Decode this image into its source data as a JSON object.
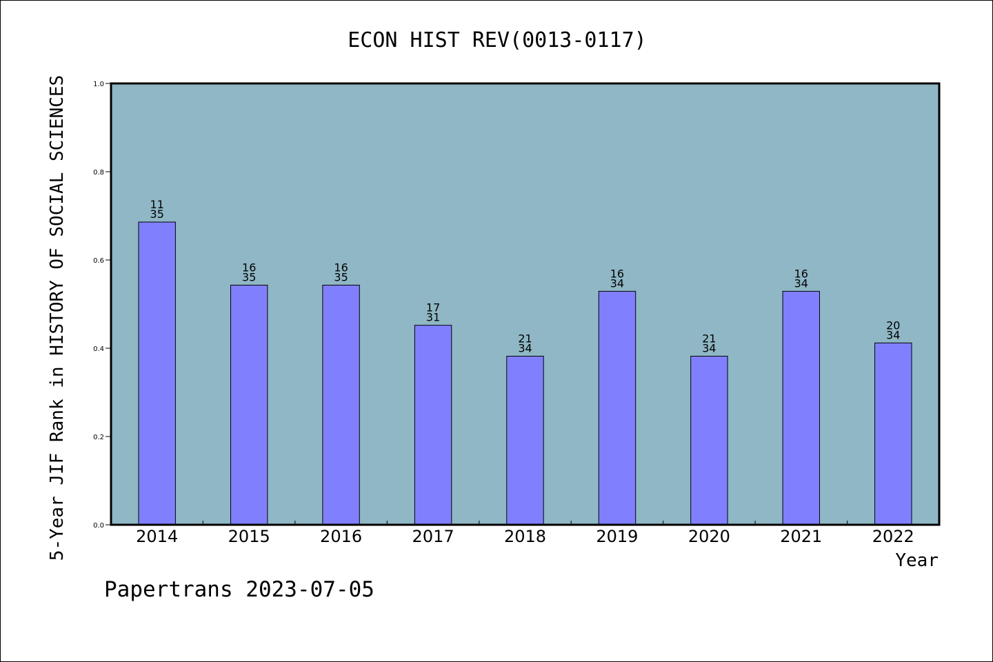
{
  "chart_data": {
    "type": "bar",
    "title": "ECON HIST REV(0013-0117)",
    "xlabel": "Year",
    "ylabel": "5-Year JIF Rank in HISTORY OF SOCIAL SCIENCES",
    "categories": [
      "2014",
      "2015",
      "2016",
      "2017",
      "2018",
      "2019",
      "2020",
      "2021",
      "2022"
    ],
    "values": [
      0.686,
      0.543,
      0.543,
      0.452,
      0.382,
      0.529,
      0.382,
      0.529,
      0.412
    ],
    "rank_labels": [
      {
        "rank": "11",
        "total": "35"
      },
      {
        "rank": "16",
        "total": "35"
      },
      {
        "rank": "16",
        "total": "35"
      },
      {
        "rank": "17",
        "total": "31"
      },
      {
        "rank": "21",
        "total": "34"
      },
      {
        "rank": "16",
        "total": "34"
      },
      {
        "rank": "21",
        "total": "34"
      },
      {
        "rank": "16",
        "total": "34"
      },
      {
        "rank": "20",
        "total": "34"
      }
    ],
    "ylim": [
      0,
      1.0
    ],
    "yticks": [
      "0.0",
      "0.2",
      "0.4",
      "0.6",
      "0.8",
      "1.0"
    ],
    "grid": false,
    "colors": {
      "plot_background": "#8fb7c5",
      "bar_fill": "#8080ff",
      "bar_stroke": "#000000"
    }
  },
  "footer": {
    "text": "Papertrans 2023-07-05"
  }
}
